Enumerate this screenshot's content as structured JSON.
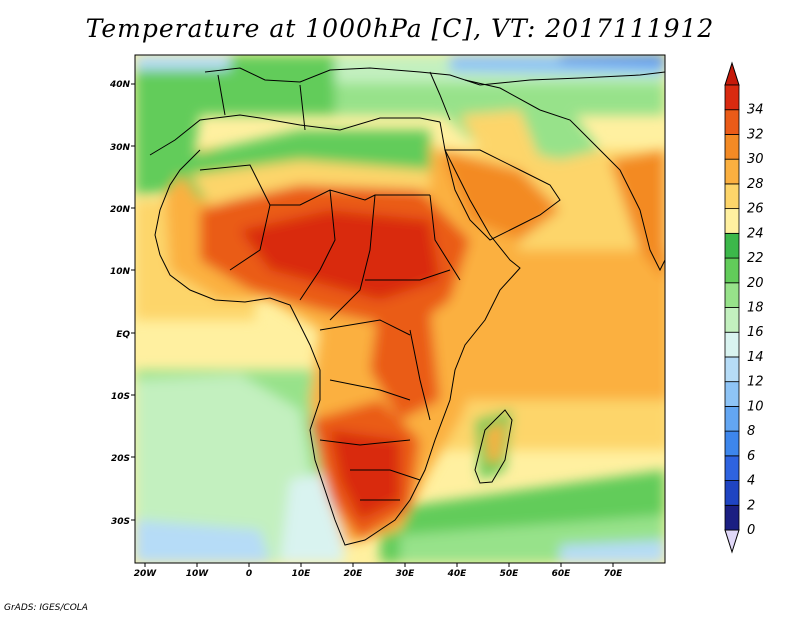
{
  "title": "Temperature at 1000hPa [C], VT: 2017111912",
  "credit": "GrADS: IGES/COLA",
  "map": {
    "lon_range": [
      -23,
      80
    ],
    "lat_range": [
      -37,
      45
    ],
    "lat_labels": [
      "40N",
      "30N",
      "20N",
      "10N",
      "EQ",
      "10S",
      "20S",
      "30S"
    ],
    "lon_labels": [
      "20W",
      "10W",
      "0",
      "10E",
      "20E",
      "30E",
      "40E",
      "50E",
      "60E",
      "70E"
    ]
  },
  "colorbar": {
    "labels": [
      "0",
      "2",
      "4",
      "6",
      "8",
      "10",
      "12",
      "14",
      "16",
      "18",
      "20",
      "22",
      "24",
      "26",
      "28",
      "30",
      "32",
      "34"
    ],
    "colors": [
      "#1b1f82",
      "#1f44c2",
      "#2e63e0",
      "#3d86ec",
      "#63a6f2",
      "#8ec4f6",
      "#b6dcf7",
      "#d9f3f0",
      "#c3f0bf",
      "#97e28a",
      "#62cc5a",
      "#3cb84a",
      "#fff0a0",
      "#fdd56a",
      "#fbb040",
      "#f38a24",
      "#ea5b18",
      "#d92a10"
    ],
    "low_arrow_color": "#e0d8f8",
    "high_arrow_color": "#c61a0a"
  }
}
